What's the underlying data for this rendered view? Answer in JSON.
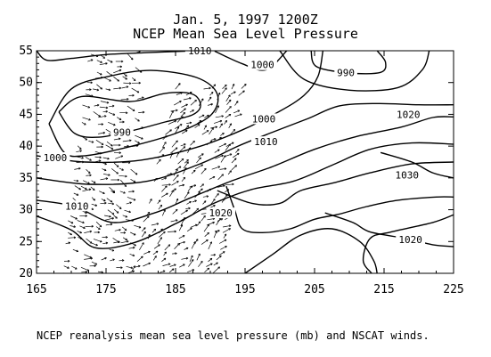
{
  "chart_data": {
    "type": "contour",
    "title": "Jan. 5, 1997   1200Z",
    "subtitle": "NCEP Mean Sea Level Pressure",
    "caption": "NCEP reanalysis mean sea level pressure (mb) and NSCAT winds.",
    "xlim": [
      165,
      225
    ],
    "ylim": [
      20,
      55
    ],
    "xticks": [
      165,
      175,
      185,
      195,
      205,
      215,
      225
    ],
    "yticks": [
      20,
      25,
      30,
      35,
      40,
      45,
      50,
      55
    ],
    "grid": false,
    "contour_labels": [
      {
        "text": "1010",
        "x": 188.5,
        "y": 55.0
      },
      {
        "text": "1000",
        "x": 197.5,
        "y": 52.8
      },
      {
        "text": "990",
        "x": 209.5,
        "y": 51.6
      },
      {
        "text": "990",
        "x": 177.3,
        "y": 42.2
      },
      {
        "text": "1000",
        "x": 197.7,
        "y": 44.3
      },
      {
        "text": "1010",
        "x": 198.0,
        "y": 40.7
      },
      {
        "text": "1020",
        "x": 218.5,
        "y": 45.0
      },
      {
        "text": "1000",
        "x": 167.7,
        "y": 38.2
      },
      {
        "text": "1030",
        "x": 218.3,
        "y": 35.5
      },
      {
        "text": "1010",
        "x": 170.8,
        "y": 30.6
      },
      {
        "text": "1020",
        "x": 191.5,
        "y": 29.5
      },
      {
        "text": "1020",
        "x": 218.8,
        "y": 25.3
      }
    ],
    "isobars": [
      {
        "level": 990,
        "points": [
          [
            168.2,
            45.4
          ],
          [
            171.5,
            47.8
          ],
          [
            178.5,
            47.0
          ],
          [
            183.5,
            48.3
          ],
          [
            187.4,
            48.2
          ],
          [
            188.6,
            46.4
          ],
          [
            187.4,
            44.9
          ],
          [
            183.5,
            43.8
          ],
          [
            179.0,
            42.5
          ],
          [
            174.0,
            41.4
          ],
          [
            170.5,
            42.0
          ],
          [
            168.2,
            45.4
          ]
        ]
      },
      {
        "level": 1000,
        "points": [
          [
            166.8,
            43.5
          ],
          [
            170.0,
            49.0
          ],
          [
            175.5,
            51.0
          ],
          [
            181.5,
            51.9
          ],
          [
            188.0,
            50.8
          ],
          [
            191.0,
            48.2
          ],
          [
            190.0,
            44.8
          ],
          [
            185.0,
            42.0
          ],
          [
            178.0,
            39.8
          ],
          [
            172.0,
            38.5
          ],
          [
            169.0,
            39.0
          ],
          [
            166.8,
            43.5
          ]
        ]
      },
      {
        "level": 1000,
        "points": [
          [
            165.0,
            38.5
          ],
          [
            172.0,
            37.5
          ],
          [
            180.0,
            37.8
          ],
          [
            188.0,
            39.8
          ],
          [
            194.5,
            42.5
          ],
          [
            200.0,
            45.5
          ],
          [
            203.5,
            48.0
          ],
          [
            205.5,
            51.0
          ],
          [
            206.2,
            55.0
          ]
        ]
      },
      {
        "level": 990,
        "points": [
          [
            204.5,
            55.0
          ],
          [
            205.3,
            52.5
          ],
          [
            210.0,
            51.5
          ],
          [
            214.5,
            51.6
          ],
          [
            215.2,
            53.2
          ],
          [
            214.0,
            55.0
          ]
        ]
      },
      {
        "level": 1000,
        "points": [
          [
            200.0,
            55.0
          ],
          [
            203.5,
            50.5
          ],
          [
            210.0,
            48.8
          ],
          [
            217.0,
            49.2
          ],
          [
            220.5,
            52.0
          ],
          [
            221.5,
            55.0
          ]
        ]
      },
      {
        "level": 1010,
        "points": [
          [
            165.0,
            55.0
          ],
          [
            166.5,
            53.5
          ],
          [
            170.0,
            53.8
          ],
          [
            175.0,
            54.4
          ],
          [
            181.0,
            54.7
          ],
          [
            188.0,
            55.0
          ]
        ]
      },
      {
        "level": 1010,
        "points": [
          [
            165.0,
            35.0
          ],
          [
            172.5,
            34.0
          ],
          [
            181.0,
            34.5
          ],
          [
            188.5,
            37.2
          ],
          [
            194.0,
            40.0
          ],
          [
            199.0,
            42.2
          ],
          [
            204.0,
            44.3
          ],
          [
            208.5,
            46.3
          ],
          [
            214.0,
            46.7
          ],
          [
            220.0,
            46.5
          ],
          [
            225.0,
            46.5
          ]
        ]
      },
      {
        "level": 1010,
        "points": [
          [
            190.5,
            55.0
          ],
          [
            194.5,
            53.0
          ],
          [
            198.0,
            52.0
          ],
          [
            201.0,
            55.0
          ]
        ]
      },
      {
        "level": 1020,
        "points": [
          [
            165.0,
            31.5
          ],
          [
            170.5,
            30.5
          ],
          [
            176.0,
            28.0
          ],
          [
            182.0,
            29.5
          ],
          [
            187.0,
            31.8
          ],
          [
            193.0,
            34.5
          ],
          [
            199.0,
            36.8
          ],
          [
            205.0,
            39.5
          ],
          [
            211.0,
            41.5
          ],
          [
            217.5,
            43.0
          ],
          [
            222.0,
            44.5
          ],
          [
            225.0,
            44.6
          ]
        ]
      },
      {
        "level": 1020,
        "points": [
          [
            165.0,
            29.0
          ],
          [
            170.0,
            26.8
          ],
          [
            173.5,
            24.0
          ],
          [
            179.0,
            24.8
          ],
          [
            185.0,
            27.8
          ],
          [
            190.5,
            31.0
          ],
          [
            196.0,
            33.2
          ],
          [
            202.0,
            34.5
          ],
          [
            207.5,
            37.0
          ],
          [
            213.0,
            39.5
          ],
          [
            219.0,
            40.5
          ],
          [
            225.0,
            40.3
          ]
        ]
      },
      {
        "level": 1030,
        "points": [
          [
            191.0,
            33.0
          ],
          [
            196.0,
            31.0
          ],
          [
            200.0,
            31.0
          ],
          [
            203.0,
            33.0
          ],
          [
            208.0,
            34.3
          ],
          [
            213.0,
            35.8
          ],
          [
            219.0,
            37.2
          ],
          [
            225.0,
            37.5
          ]
        ]
      },
      {
        "level": 1030,
        "points": [
          [
            214.5,
            39.0
          ],
          [
            219.0,
            37.5
          ],
          [
            222.0,
            35.8
          ],
          [
            225.0,
            35.0
          ]
        ]
      },
      {
        "level": 1020,
        "points": [
          [
            192.3,
            33.7
          ],
          [
            193.5,
            30.0
          ],
          [
            194.6,
            27.0
          ],
          [
            197.5,
            26.4
          ],
          [
            201.5,
            27.0
          ],
          [
            205.0,
            28.5
          ],
          [
            208.5,
            29.3
          ],
          [
            212.5,
            30.5
          ],
          [
            217.0,
            31.5
          ],
          [
            222.5,
            32.0
          ],
          [
            225.0,
            32.0
          ]
        ]
      },
      {
        "level": 1020,
        "points": [
          [
            195.0,
            20.0
          ],
          [
            199.0,
            23.0
          ],
          [
            203.0,
            26.0
          ],
          [
            207.5,
            27.0
          ],
          [
            211.5,
            25.0
          ],
          [
            213.5,
            22.0
          ],
          [
            214.0,
            20.0
          ]
        ]
      },
      {
        "level": 1030,
        "points": [
          [
            206.5,
            29.5
          ],
          [
            210.5,
            28.0
          ],
          [
            213.0,
            26.5
          ],
          [
            218.0,
            25.5
          ],
          [
            222.0,
            24.5
          ],
          [
            225.0,
            24.2
          ]
        ]
      },
      {
        "level": 1030,
        "points": [
          [
            225.0,
            29.2
          ],
          [
            222.0,
            28.0
          ],
          [
            216.0,
            26.5
          ],
          [
            213.0,
            25.5
          ],
          [
            212.0,
            22.0
          ],
          [
            213.2,
            20.0
          ]
        ]
      }
    ],
    "wind_swaths": [
      {
        "x0": 168.5,
        "x1": 178.2,
        "y0": 20.0,
        "y1": 55.0,
        "skew": 4.0,
        "u": 0.8,
        "v": -0.2
      },
      {
        "x0": 178.5,
        "x1": 191.5,
        "y0": 20.0,
        "y1": 49.5,
        "skew": 6.5,
        "u": 0.6,
        "v": 0.5
      }
    ]
  }
}
